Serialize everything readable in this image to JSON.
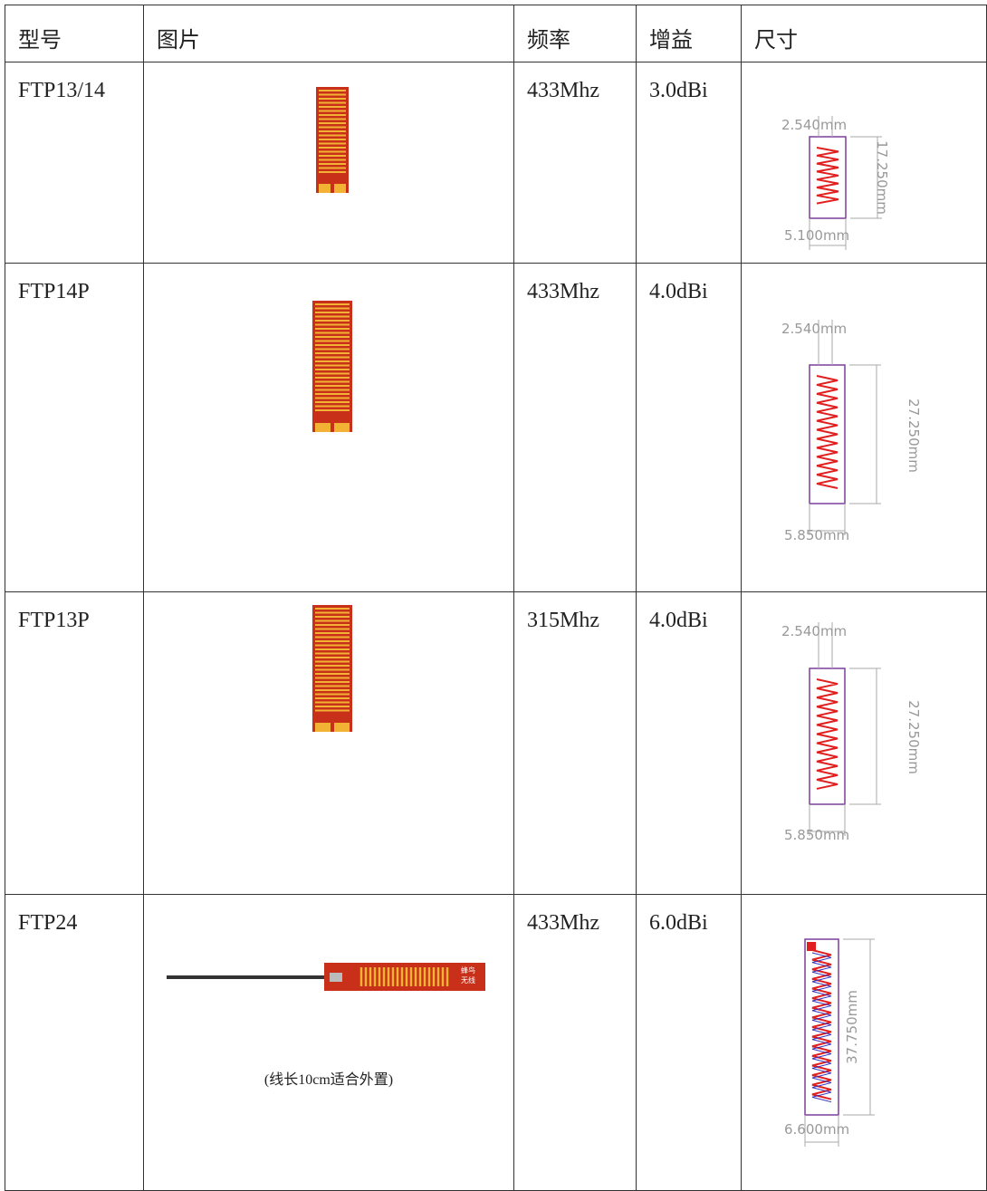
{
  "table": {
    "header": [
      "型号",
      "图片",
      "频率",
      "增益",
      "尺寸"
    ],
    "rows": [
      {
        "model": "FTP13/14",
        "frequency": "433Mhz",
        "gain": "3.0dBi",
        "dimensions": [
          "2.540mm",
          "17.250mm",
          "5.100mm"
        ]
      },
      {
        "model": "FTP14P",
        "frequency": "433Mhz",
        "gain": "4.0dBi",
        "dimensions": [
          "2.540mm",
          "27.250mm",
          "5.850mm"
        ]
      },
      {
        "model": "FTP13P",
        "frequency": "315Mhz",
        "gain": "4.0dBi",
        "dimensions": [
          "2.540mm",
          "27.250mm",
          "5.850mm"
        ]
      },
      {
        "model": "FTP24",
        "frequency": "433Mhz",
        "gain": "6.0dBi",
        "dimensions": [
          "37.750mm",
          "6.600mm"
        ],
        "caption": "(线长10cm适合外置)",
        "pcb_text": [
          "蜂鸟",
          "无线"
        ]
      }
    ]
  }
}
